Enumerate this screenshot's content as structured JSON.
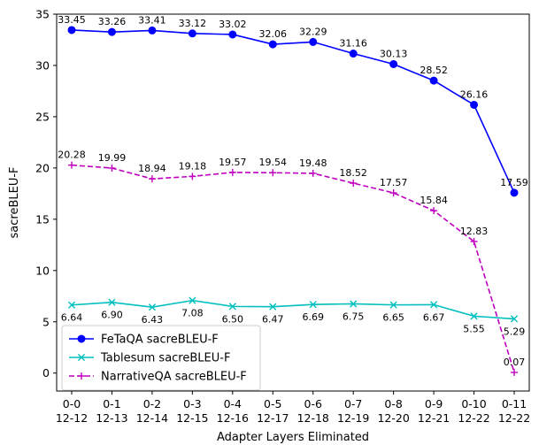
{
  "chart_data": {
    "type": "line",
    "title": "",
    "xlabel": "Adapter Layers Eliminated",
    "ylabel": "sacreBLEU-F",
    "ylim": [
      -1.75,
      35
    ],
    "yticks": [
      0,
      5,
      10,
      15,
      20,
      25,
      30,
      35
    ],
    "grid": false,
    "legend_position": "lower-left",
    "categories": [
      [
        "0-0",
        "12-12"
      ],
      [
        "0-1",
        "12-13"
      ],
      [
        "0-2",
        "12-14"
      ],
      [
        "0-3",
        "12-15"
      ],
      [
        "0-4",
        "12-16"
      ],
      [
        "0-5",
        "12-17"
      ],
      [
        "0-6",
        "12-18"
      ],
      [
        "0-7",
        "12-19"
      ],
      [
        "0-8",
        "12-20"
      ],
      [
        "0-9",
        "12-21"
      ],
      [
        "0-10",
        "12-22"
      ],
      [
        "0-11",
        "12-22"
      ]
    ],
    "series": [
      {
        "name": "FeTaQA sacreBLEU-F",
        "color": "#0000ff",
        "marker": "circle",
        "line_style": "solid",
        "label_position": "above",
        "values": [
          33.45,
          33.26,
          33.41,
          33.12,
          33.02,
          32.06,
          32.29,
          31.16,
          30.13,
          28.52,
          26.16,
          17.59
        ],
        "labels": [
          "33.45",
          "33.26",
          "33.41",
          "33.12",
          "33.02",
          "32.06",
          "32.29",
          "31.16",
          "30.13",
          "28.52",
          "26.16",
          "17.59"
        ]
      },
      {
        "name": "Tablesum sacreBLEU-F",
        "color": "#00bfbf",
        "marker": "x",
        "line_style": "solid",
        "label_position": "below",
        "values": [
          6.64,
          6.9,
          6.43,
          7.08,
          6.5,
          6.47,
          6.69,
          6.75,
          6.65,
          6.67,
          5.55,
          5.29
        ],
        "labels": [
          "6.64",
          "6.90",
          "6.43",
          "7.08",
          "6.50",
          "6.47",
          "6.69",
          "6.75",
          "6.65",
          "6.67",
          "5.55",
          "5.29"
        ]
      },
      {
        "name": "NarrativeQA sacreBLEU-F",
        "color": "#bf00bf",
        "marker": "plus",
        "line_style": "dashed",
        "label_position": "above",
        "values": [
          20.28,
          19.99,
          18.94,
          19.18,
          19.57,
          19.54,
          19.48,
          18.52,
          17.57,
          15.84,
          12.83,
          0.07
        ],
        "labels": [
          "20.28",
          "19.99",
          "18.94",
          "19.18",
          "19.57",
          "19.54",
          "19.48",
          "18.52",
          "17.57",
          "15.84",
          "12.83",
          "0.07"
        ]
      }
    ]
  }
}
